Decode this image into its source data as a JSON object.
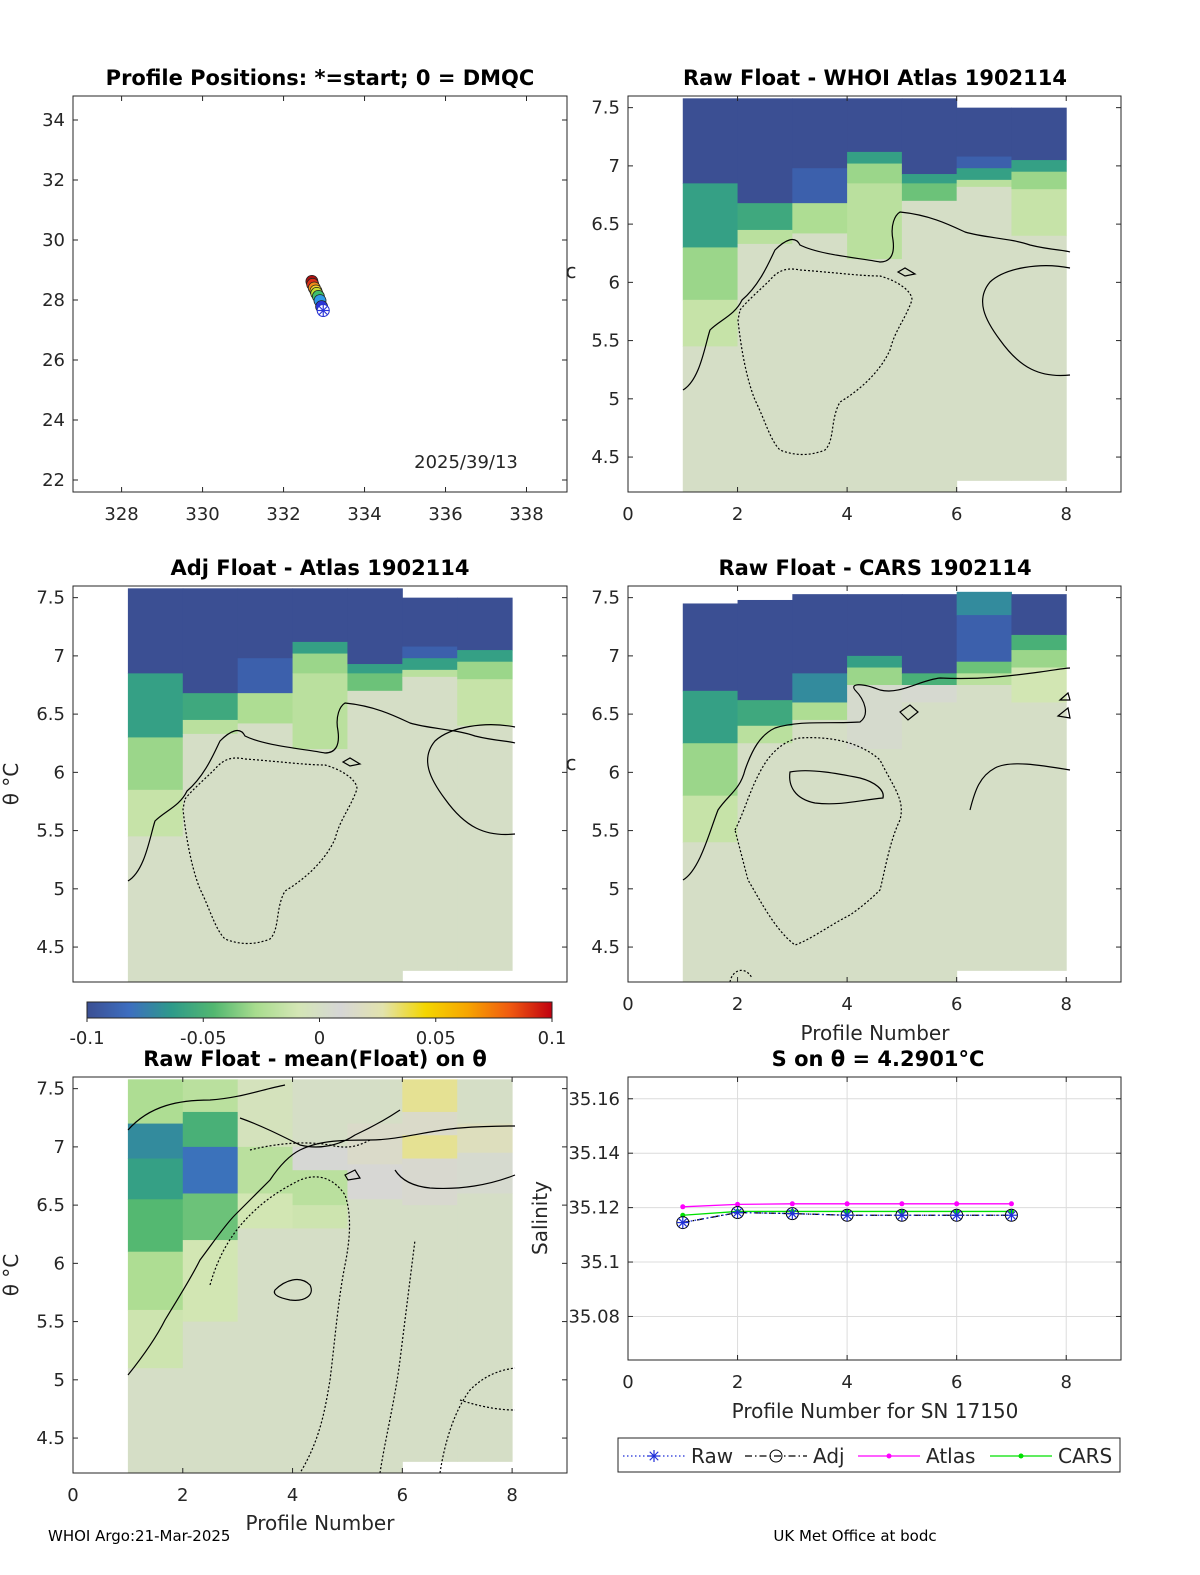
{
  "chart_data": [
    {
      "type": "scatter",
      "title": "Profile Positions: *=start; 0 = DMQC",
      "xlim": [
        326.8,
        339.0
      ],
      "ylim": [
        21.6,
        34.8
      ],
      "xticks": [
        "328",
        "330",
        "332",
        "334",
        "336",
        "338"
      ],
      "yticks": [
        "22",
        "24",
        "26",
        "28",
        "30",
        "32",
        "34"
      ],
      "annotation": "2025/39/13",
      "start_marker": "*",
      "points": [
        {
          "lon": 332.98,
          "lat": 27.65,
          "color": "#2b35d8"
        },
        {
          "lon": 332.94,
          "lat": 27.78,
          "color": "#2b35d8"
        },
        {
          "lon": 332.9,
          "lat": 27.98,
          "color": "#2f9be8"
        },
        {
          "lon": 332.86,
          "lat": 28.12,
          "color": "#3fbf6a"
        },
        {
          "lon": 332.82,
          "lat": 28.22,
          "color": "#c6e032"
        },
        {
          "lon": 332.8,
          "lat": 28.3,
          "color": "#f5d12a"
        },
        {
          "lon": 332.76,
          "lat": 28.4,
          "color": "#f28a1a"
        },
        {
          "lon": 332.72,
          "lat": 28.52,
          "color": "#dc2e18"
        },
        {
          "lon": 332.7,
          "lat": 28.62,
          "color": "#a81010"
        }
      ]
    },
    {
      "type": "heatmap",
      "title": "Raw Float - WHOI Atlas  1902114",
      "xlim": [
        0,
        9
      ],
      "ylim": [
        4.2,
        7.6
      ],
      "xticks": [
        "0",
        "2",
        "4",
        "6",
        "8"
      ],
      "yticks": [
        "4.5",
        "5",
        "5.5",
        "6",
        "6.5",
        "7",
        "7.5"
      ],
      "ylabel": "",
      "xlabel": "",
      "columns": [
        {
          "top": 7.58,
          "bottom": 4.2,
          "layers": [
            [
              6.85,
              -0.1
            ],
            [
              6.3,
              -0.06
            ],
            [
              5.85,
              -0.03
            ],
            [
              5.45,
              -0.015
            ],
            [
              4.2,
              0.0
            ]
          ]
        },
        {
          "top": 7.58,
          "bottom": 4.2,
          "layers": [
            [
              6.68,
              -0.1
            ],
            [
              6.45,
              -0.055
            ],
            [
              6.33,
              -0.02
            ],
            [
              4.2,
              0.0
            ]
          ]
        },
        {
          "top": 7.58,
          "bottom": 4.2,
          "layers": [
            [
              6.98,
              -0.1
            ],
            [
              6.68,
              -0.09
            ],
            [
              6.42,
              -0.025
            ],
            [
              4.2,
              0.0
            ]
          ]
        },
        {
          "top": 7.58,
          "bottom": 4.2,
          "layers": [
            [
              7.12,
              -0.1
            ],
            [
              7.02,
              -0.06
            ],
            [
              6.85,
              -0.03
            ],
            [
              6.2,
              -0.02
            ],
            [
              4.2,
              0.0
            ]
          ]
        },
        {
          "top": 7.58,
          "bottom": 4.2,
          "layers": [
            [
              6.93,
              -0.1
            ],
            [
              6.85,
              -0.06
            ],
            [
              6.7,
              -0.04
            ],
            [
              4.2,
              0.0
            ]
          ]
        },
        {
          "top": 7.5,
          "bottom": 4.3,
          "layers": [
            [
              7.08,
              -0.1
            ],
            [
              6.98,
              -0.09
            ],
            [
              6.88,
              -0.06
            ],
            [
              6.82,
              -0.02
            ],
            [
              4.3,
              0.0
            ]
          ]
        },
        {
          "top": 7.5,
          "bottom": 4.3,
          "layers": [
            [
              7.05,
              -0.1
            ],
            [
              6.95,
              -0.06
            ],
            [
              6.8,
              -0.03
            ],
            [
              6.4,
              -0.015
            ],
            [
              4.3,
              0.0
            ]
          ]
        }
      ]
    },
    {
      "type": "heatmap",
      "title": "Adj Float - Atlas  1902114",
      "xlim": [
        0,
        9
      ],
      "ylim": [
        4.2,
        7.6
      ],
      "yticks": [
        "4.5",
        "5",
        "5.5",
        "6",
        "6.5",
        "7",
        "7.5"
      ],
      "ylabel": "θ °C",
      "columns": [
        {
          "top": 7.58,
          "bottom": 4.2,
          "layers": [
            [
              6.85,
              -0.1
            ],
            [
              6.3,
              -0.06
            ],
            [
              5.85,
              -0.03
            ],
            [
              5.45,
              -0.015
            ],
            [
              4.2,
              0.0
            ]
          ]
        },
        {
          "top": 7.58,
          "bottom": 4.2,
          "layers": [
            [
              6.68,
              -0.1
            ],
            [
              6.45,
              -0.055
            ],
            [
              6.33,
              -0.02
            ],
            [
              4.2,
              0.0
            ]
          ]
        },
        {
          "top": 7.58,
          "bottom": 4.2,
          "layers": [
            [
              6.98,
              -0.1
            ],
            [
              6.68,
              -0.09
            ],
            [
              6.42,
              -0.025
            ],
            [
              4.2,
              0.0
            ]
          ]
        },
        {
          "top": 7.58,
          "bottom": 4.2,
          "layers": [
            [
              7.12,
              -0.1
            ],
            [
              7.02,
              -0.06
            ],
            [
              6.85,
              -0.03
            ],
            [
              6.2,
              -0.02
            ],
            [
              4.2,
              0.0
            ]
          ]
        },
        {
          "top": 7.58,
          "bottom": 4.2,
          "layers": [
            [
              6.93,
              -0.1
            ],
            [
              6.85,
              -0.06
            ],
            [
              6.7,
              -0.04
            ],
            [
              4.2,
              0.0
            ]
          ]
        },
        {
          "top": 7.5,
          "bottom": 4.3,
          "layers": [
            [
              7.08,
              -0.1
            ],
            [
              6.98,
              -0.09
            ],
            [
              6.88,
              -0.06
            ],
            [
              6.82,
              -0.02
            ],
            [
              4.3,
              0.0
            ]
          ]
        },
        {
          "top": 7.5,
          "bottom": 4.3,
          "layers": [
            [
              7.05,
              -0.1
            ],
            [
              6.95,
              -0.06
            ],
            [
              6.8,
              -0.03
            ],
            [
              6.4,
              -0.015
            ],
            [
              4.3,
              0.0
            ]
          ]
        }
      ]
    },
    {
      "type": "heatmap",
      "title": "Raw Float - CARS  1902114",
      "xlim": [
        0,
        9
      ],
      "ylim": [
        4.2,
        7.6
      ],
      "xticks": [
        "0",
        "2",
        "4",
        "6",
        "8"
      ],
      "yticks": [
        "4.5",
        "5",
        "5.5",
        "6",
        "6.5",
        "7",
        "7.5"
      ],
      "xlabel": "Profile Number",
      "columns": [
        {
          "top": 7.45,
          "bottom": 4.2,
          "layers": [
            [
              6.7,
              -0.1
            ],
            [
              6.25,
              -0.06
            ],
            [
              5.8,
              -0.03
            ],
            [
              5.4,
              -0.015
            ],
            [
              4.2,
              0.0
            ]
          ]
        },
        {
          "top": 7.48,
          "bottom": 4.2,
          "layers": [
            [
              6.62,
              -0.1
            ],
            [
              6.4,
              -0.055
            ],
            [
              6.25,
              -0.02
            ],
            [
              4.2,
              0.0
            ]
          ]
        },
        {
          "top": 7.53,
          "bottom": 4.2,
          "layers": [
            [
              6.85,
              -0.1
            ],
            [
              6.6,
              -0.07
            ],
            [
              6.45,
              -0.025
            ],
            [
              4.2,
              0.0
            ]
          ]
        },
        {
          "top": 7.53,
          "bottom": 4.2,
          "layers": [
            [
              7.0,
              -0.1
            ],
            [
              6.9,
              -0.06
            ],
            [
              6.75,
              -0.03
            ],
            [
              6.2,
              0.004
            ],
            [
              4.2,
              0.0
            ]
          ]
        },
        {
          "top": 7.53,
          "bottom": 4.2,
          "layers": [
            [
              6.85,
              -0.1
            ],
            [
              6.75,
              -0.05
            ],
            [
              6.6,
              0.006
            ],
            [
              4.2,
              0.0
            ]
          ]
        },
        {
          "top": 7.55,
          "bottom": 4.3,
          "layers": [
            [
              7.35,
              -0.07
            ],
            [
              6.95,
              -0.09
            ],
            [
              6.85,
              -0.04
            ],
            [
              6.75,
              -0.02
            ],
            [
              4.3,
              0.0
            ]
          ]
        },
        {
          "top": 7.53,
          "bottom": 4.3,
          "layers": [
            [
              7.18,
              -0.1
            ],
            [
              7.05,
              -0.05
            ],
            [
              6.9,
              -0.03
            ],
            [
              6.6,
              -0.01
            ],
            [
              4.3,
              0.0
            ]
          ]
        }
      ]
    },
    {
      "type": "heatmap",
      "title": "Raw Float - mean(Float) on θ",
      "xlim": [
        0,
        9
      ],
      "ylim": [
        4.2,
        7.6
      ],
      "xticks": [
        "0",
        "2",
        "4",
        "6",
        "8"
      ],
      "yticks": [
        "4.5",
        "5",
        "5.5",
        "6",
        "6.5",
        "7",
        "7.5"
      ],
      "xlabel": "Profile Number",
      "ylabel": "θ °C",
      "columns": [
        {
          "top": 7.58,
          "bottom": 4.2,
          "layers": [
            [
              7.2,
              -0.025
            ],
            [
              6.9,
              -0.07
            ],
            [
              6.55,
              -0.06
            ],
            [
              6.1,
              -0.045
            ],
            [
              5.6,
              -0.025
            ],
            [
              5.1,
              -0.012
            ],
            [
              4.2,
              0.0
            ]
          ]
        },
        {
          "top": 7.58,
          "bottom": 4.2,
          "layers": [
            [
              7.3,
              -0.02
            ],
            [
              7.0,
              -0.05
            ],
            [
              6.6,
              -0.08
            ],
            [
              6.2,
              -0.04
            ],
            [
              5.5,
              -0.01
            ],
            [
              4.2,
              0.0
            ]
          ]
        },
        {
          "top": 7.58,
          "bottom": 4.2,
          "layers": [
            [
              7.0,
              -0.005
            ],
            [
              6.6,
              -0.02
            ],
            [
              6.3,
              -0.01
            ],
            [
              4.2,
              0.0
            ]
          ]
        },
        {
          "top": 7.58,
          "bottom": 4.2,
          "layers": [
            [
              7.0,
              0.0
            ],
            [
              6.8,
              0.008
            ],
            [
              6.5,
              -0.02
            ],
            [
              6.3,
              -0.012
            ],
            [
              4.2,
              0.0
            ]
          ]
        },
        {
          "top": 7.58,
          "bottom": 4.2,
          "layers": [
            [
              7.2,
              0.0
            ],
            [
              6.85,
              0.015
            ],
            [
              6.55,
              0.01
            ],
            [
              4.2,
              0.0
            ]
          ]
        },
        {
          "top": 7.58,
          "bottom": 4.3,
          "layers": [
            [
              7.3,
              0.03
            ],
            [
              7.1,
              0.015
            ],
            [
              6.9,
              0.03
            ],
            [
              6.5,
              0.012
            ],
            [
              4.3,
              0.0
            ]
          ]
        },
        {
          "top": 7.58,
          "bottom": 4.3,
          "layers": [
            [
              7.2,
              0.0
            ],
            [
              6.95,
              0.02
            ],
            [
              6.6,
              0.005
            ],
            [
              4.3,
              0.0
            ]
          ]
        }
      ]
    },
    {
      "type": "line",
      "title": "S on θ = 4.2901°C",
      "xlabel": "Profile Number for SN 17150",
      "ylabel": "Salinity",
      "xlim": [
        0,
        9
      ],
      "ylim": [
        35.064,
        35.168
      ],
      "xticks": [
        "0",
        "2",
        "4",
        "6",
        "8"
      ],
      "yticks": [
        "35.08",
        "35.1",
        "35.12",
        "35.14",
        "35.16"
      ],
      "x": [
        1,
        2,
        3,
        4,
        5,
        6,
        7
      ],
      "series": [
        {
          "name": "Raw",
          "color": "#1f2fd8",
          "style": "dotted",
          "marker": "*",
          "values": [
            35.1145,
            35.1182,
            35.1178,
            35.1172,
            35.1172,
            35.1172,
            35.1172
          ]
        },
        {
          "name": "Adj",
          "color": "#000000",
          "style": "dashdot",
          "marker": "o",
          "values": [
            35.1145,
            35.1182,
            35.1178,
            35.1172,
            35.1172,
            35.1172,
            35.1172
          ]
        },
        {
          "name": "Atlas",
          "color": "#ff00ff",
          "style": "solid",
          "marker": ".",
          "values": [
            35.1203,
            35.1212,
            35.1214,
            35.1214,
            35.1214,
            35.1214,
            35.1214
          ]
        },
        {
          "name": "CARS",
          "color": "#00e000",
          "style": "solid",
          "marker": ".",
          "values": [
            35.1172,
            35.1186,
            35.1186,
            35.1186,
            35.1186,
            35.1186,
            35.1186
          ]
        }
      ]
    }
  ],
  "colorbar": {
    "range": [
      -0.1,
      0.1
    ],
    "tick_labels": [
      "-0.1",
      "-0.05",
      "0",
      "0.05",
      "0.1"
    ],
    "stops": [
      "#3b4f93",
      "#3d6ec0",
      "#2e9a8a",
      "#52b770",
      "#a8dc8e",
      "#d4e6b5",
      "#d6d6d6",
      "#e2e3ad",
      "#f4d600",
      "#f6a500",
      "#f05a10",
      "#c00010"
    ]
  },
  "footer": {
    "left": "WHOI Argo:21-Mar-2025",
    "right": "UK Met Office at bodc"
  },
  "ylabel_theta": "θ °C"
}
